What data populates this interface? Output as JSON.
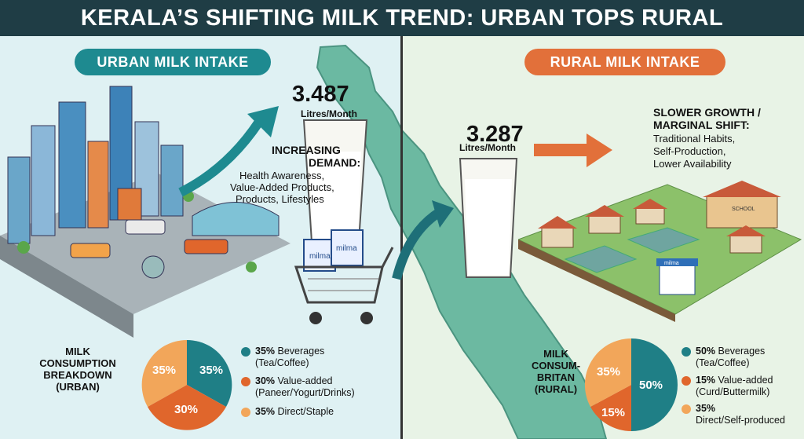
{
  "title": "KERALA’S SHIFTING MILK TREND: URBAN TOPS RURAL",
  "urban": {
    "header": "URBAN MILK INTAKE",
    "value": "3.487",
    "unit": "Litres/Month",
    "demand_title_1": "INCREASING",
    "demand_title_2": "DEMAND:",
    "demand_lines": [
      "Health Awareness,",
      "Value-Added Products,",
      "Products, Lifestyles"
    ],
    "breakdown_label_1": "MILK",
    "breakdown_label_2": "CONSUMPTION",
    "breakdown_label_3": "BREAKDOWN",
    "breakdown_label_4": "(URBAN)",
    "legend": [
      {
        "pct": "35%",
        "text1": "Beverages",
        "text2": "(Tea/Coffee)",
        "color": "#1f7f86"
      },
      {
        "pct": "30%",
        "text1": "Value-added",
        "text2": "(Paneer/Yogurt/Drinks)",
        "color": "#e0662c"
      },
      {
        "pct": "35%",
        "text1": "Direct/Staple",
        "text2": "",
        "color": "#f2a65a"
      }
    ],
    "slice_labels": [
      "35%",
      "30%",
      "35%"
    ]
  },
  "rural": {
    "header": "RURAL MILK INTAKE",
    "value": "3.287",
    "unit": "Litres/Month",
    "slow_title_1": "SLOWER GROWTH /",
    "slow_title_2": "MARGINAL SHIFT:",
    "slow_lines": [
      "Traditional Habits,",
      "Self-Production,",
      "Lower Availability"
    ],
    "breakdown_label_1": "MILK",
    "breakdown_label_2": "CONSUM-",
    "breakdown_label_3": "BRITAN",
    "breakdown_label_4": "(RURAL)",
    "legend": [
      {
        "pct": "50%",
        "text1": "Beverages",
        "text2": "(Tea/Coffee)",
        "color": "#1f7f86"
      },
      {
        "pct": "15%",
        "text1": "Value-added",
        "text2": "(Curd/Buttermilk)",
        "color": "#e0662c"
      },
      {
        "pct": "35%",
        "text1": "",
        "text2": "Direct/Self-produced",
        "color": "#f2a65a"
      }
    ],
    "slice_labels": [
      "50%",
      "15%",
      "35%"
    ]
  },
  "labels": {
    "milma": "milma",
    "school": "SCHOOL"
  }
}
